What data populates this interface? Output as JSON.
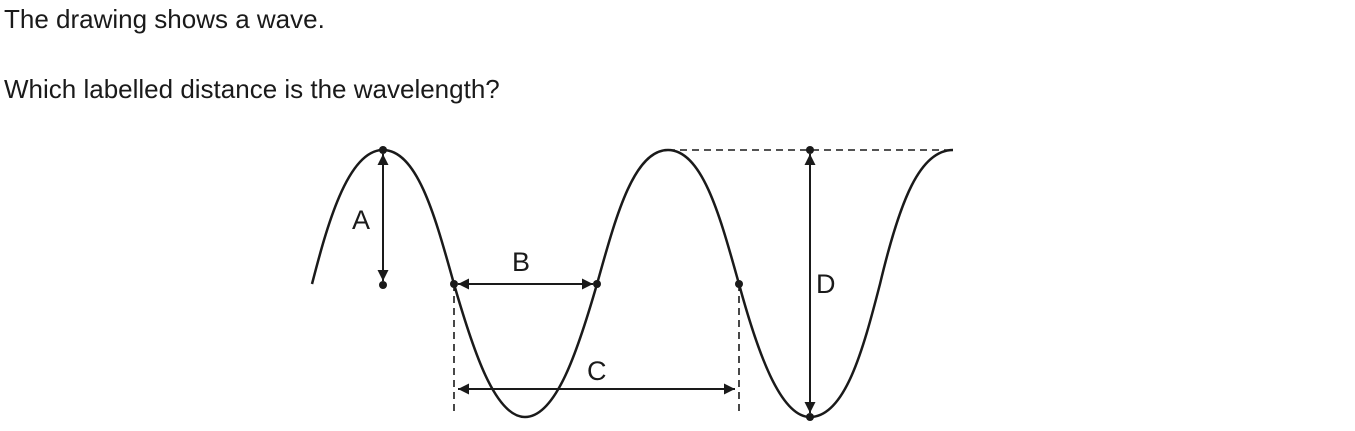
{
  "question": {
    "line1": "The drawing shows a wave.",
    "line2": "Which labelled distance is the wavelength?"
  },
  "diagram": {
    "labels": {
      "a": "A",
      "b": "B",
      "c": "C",
      "d": "D"
    }
  }
}
